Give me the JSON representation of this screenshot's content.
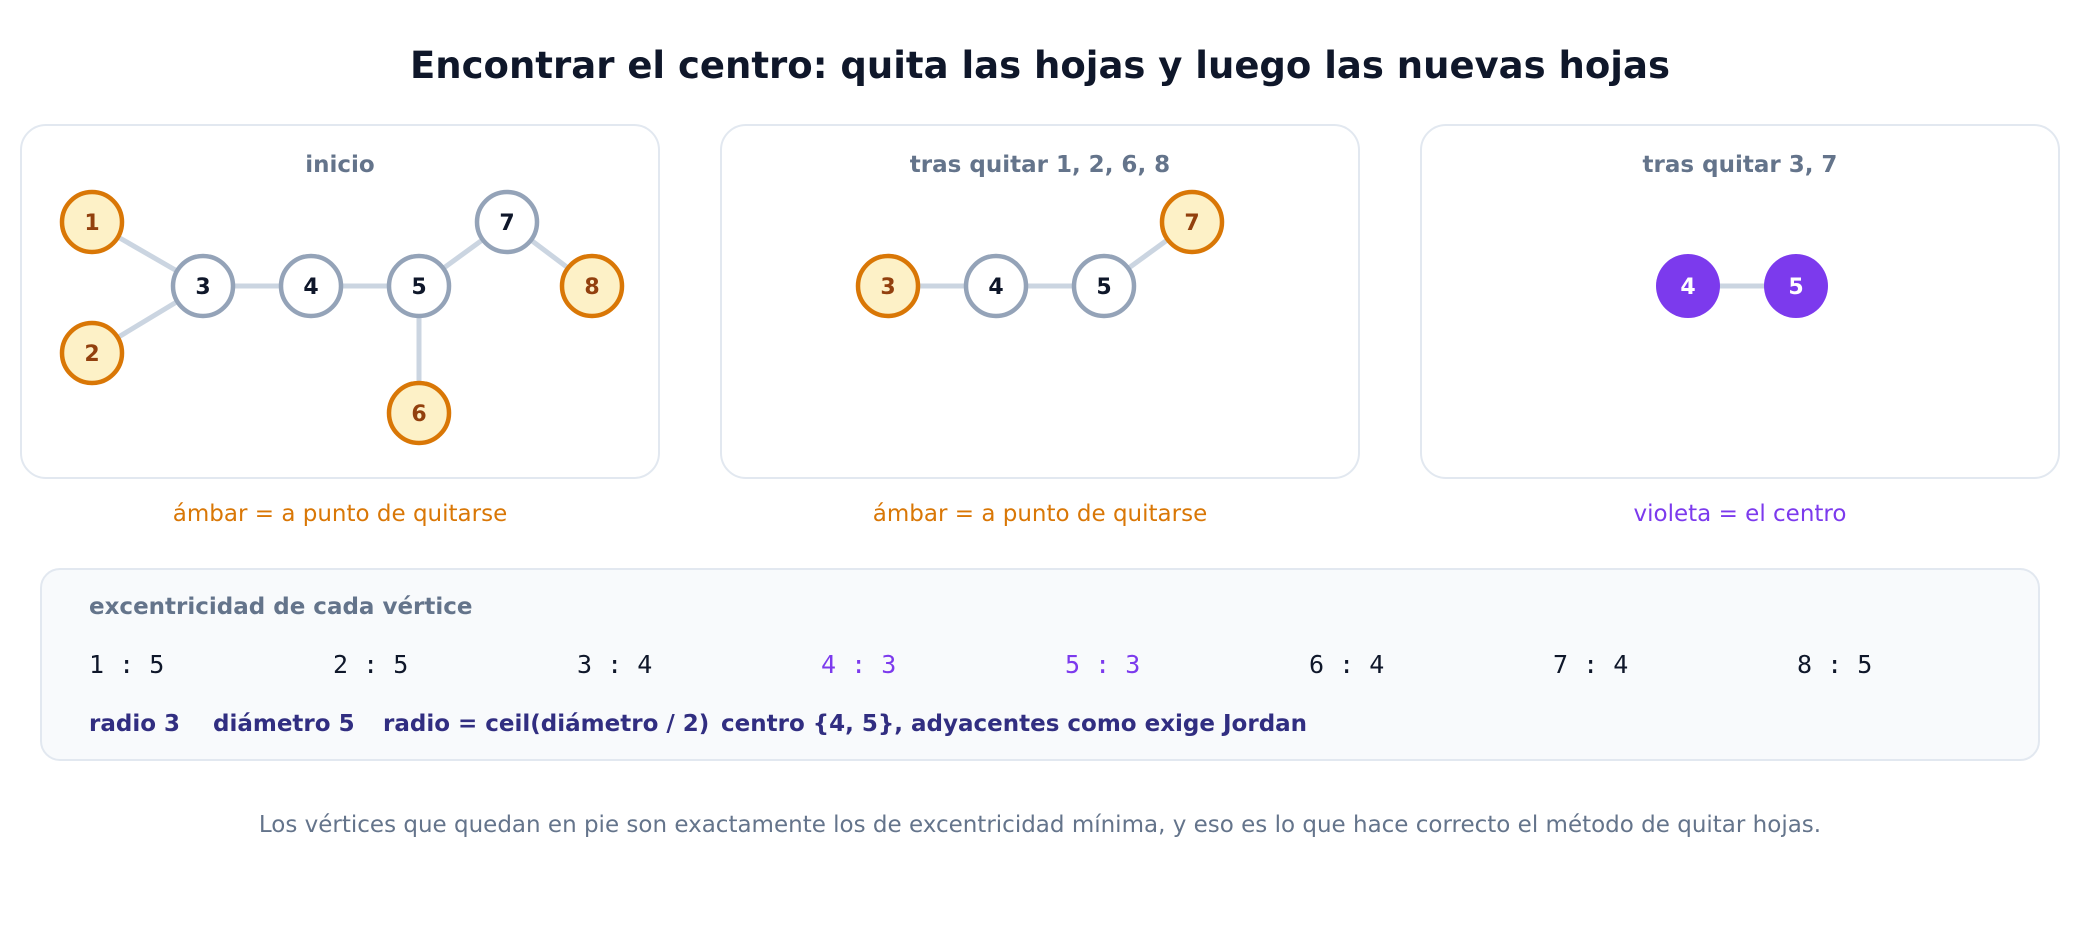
{
  "title": "Encontrar el centro: quita las hojas y luego las nuevas hojas",
  "colors": {
    "leaf_fill": "#fdf1c7",
    "leaf_stroke": "#d97706",
    "leaf_text": "#92400e",
    "node_stroke": "#94a3b8",
    "node_text": "#0f172a",
    "edge": "#cbd5e1",
    "center_fill": "#7c3aed",
    "amber_caption": "#d97706",
    "violet_caption": "#7c3aed"
  },
  "panels": [
    {
      "title": "inicio",
      "caption": "ámbar = a punto de quitarse",
      "nodes": [
        {
          "id": "1",
          "state": "leaf"
        },
        {
          "id": "2",
          "state": "leaf"
        },
        {
          "id": "3",
          "state": "normal"
        },
        {
          "id": "4",
          "state": "normal"
        },
        {
          "id": "5",
          "state": "normal"
        },
        {
          "id": "6",
          "state": "leaf"
        },
        {
          "id": "7",
          "state": "normal"
        },
        {
          "id": "8",
          "state": "leaf"
        }
      ],
      "edges": [
        [
          "1",
          "3"
        ],
        [
          "2",
          "3"
        ],
        [
          "3",
          "4"
        ],
        [
          "4",
          "5"
        ],
        [
          "5",
          "6"
        ],
        [
          "5",
          "7"
        ],
        [
          "7",
          "8"
        ]
      ]
    },
    {
      "title": "tras quitar 1, 2, 6, 8",
      "caption": "ámbar = a punto de quitarse",
      "nodes": [
        {
          "id": "3",
          "state": "leaf"
        },
        {
          "id": "4",
          "state": "normal"
        },
        {
          "id": "5",
          "state": "normal"
        },
        {
          "id": "7",
          "state": "leaf"
        }
      ],
      "edges": [
        [
          "3",
          "4"
        ],
        [
          "4",
          "5"
        ],
        [
          "5",
          "7"
        ]
      ]
    },
    {
      "title": "tras quitar 3, 7",
      "caption": "violeta = el centro",
      "nodes": [
        {
          "id": "4",
          "state": "center"
        },
        {
          "id": "5",
          "state": "center"
        }
      ],
      "edges": [
        [
          "4",
          "5"
        ]
      ]
    }
  ],
  "eccentricity": {
    "title": "excentricidad de cada vértice",
    "items": [
      {
        "text": "1 : 5",
        "center": false
      },
      {
        "text": "2 : 5",
        "center": false
      },
      {
        "text": "3 : 4",
        "center": false
      },
      {
        "text": "4 : 3",
        "center": true
      },
      {
        "text": "5 : 3",
        "center": true
      },
      {
        "text": "6 : 4",
        "center": false
      },
      {
        "text": "7 : 4",
        "center": false
      },
      {
        "text": "8 : 5",
        "center": false
      }
    ],
    "stats": [
      "radio 3",
      "diámetro 5",
      "radio = ceil(diámetro / 2)",
      "centro {4, 5}, adyacentes como exige Jordan"
    ]
  },
  "footer": "Los vértices que quedan en pie son exactamente los de excentricidad mínima, y eso es lo que hace correcto el método de quitar hojas."
}
